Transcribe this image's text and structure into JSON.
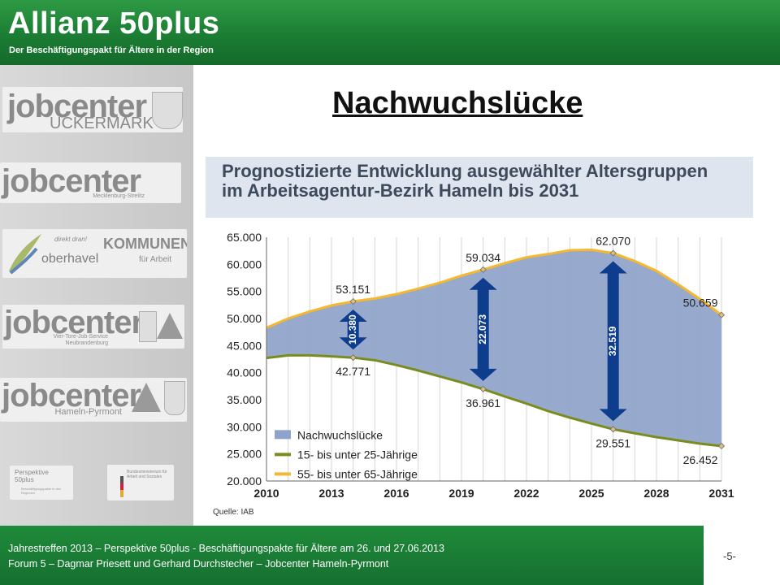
{
  "header": {
    "brand": "Allianz 50plus",
    "tagline": "Der Beschäftigungspakt für Ältere in der Region"
  },
  "sidebar": {
    "logos": [
      {
        "name": "jobcenter",
        "sub": "UCKERMARK"
      },
      {
        "name": "jobcenter",
        "sub": "Mecklenburg-Strelitz"
      },
      {
        "name": "oberhavel",
        "extra": "direkt dran!",
        "partner": "KOMMUNEN",
        "partner_sub": "für Arbeit"
      },
      {
        "name": "jobcenter",
        "sub": "Vier-Tore-Job-Service Neubrandenburg"
      },
      {
        "name": "jobcenter",
        "sub": "Hameln-Pyrmont"
      },
      {
        "name": "Perspektive 50plus",
        "sub": "Beschäftigungspakte in den Regionen",
        "partner": "Bundesministerium für Arbeit und Soziales"
      }
    ]
  },
  "main": {
    "title": "Nachwuchslücke",
    "chart_title_line1": "Prognostizierte Entwicklung ausgewählter Altersgruppen",
    "chart_title_line2": "im Arbeitsagentur-Bezirk Hameln bis 2031",
    "source": "Quelle: IAB"
  },
  "chart_data": {
    "type": "area",
    "title": "Prognostizierte Entwicklung ausgewählter Altersgruppen im Arbeitsagentur-Bezirk Hameln bis 2031",
    "x_ticks": [
      "2010",
      "2013",
      "2016",
      "2019",
      "2022",
      "2025",
      "2028",
      "2031"
    ],
    "y_ticks": [
      "20.000",
      "25.000",
      "30.000",
      "35.000",
      "40.000",
      "45.000",
      "50.000",
      "55.000",
      "60.000",
      "65.000"
    ],
    "ylim": [
      20000,
      65000
    ],
    "xlim": [
      2010,
      2031
    ],
    "series": [
      {
        "name": "15- bis unter 25-Jährige",
        "color": "#7a8c1f",
        "x": [
          2010,
          2011,
          2012,
          2013,
          2014,
          2015,
          2016,
          2017,
          2018,
          2019,
          2020,
          2021,
          2022,
          2023,
          2024,
          2025,
          2026,
          2027,
          2028,
          2029,
          2030,
          2031
        ],
        "y": [
          42700,
          43200,
          43200,
          43000,
          42771,
          42300,
          41400,
          40400,
          39300,
          38200,
          36961,
          35600,
          34300,
          32900,
          31700,
          30600,
          29551,
          28800,
          28100,
          27500,
          26900,
          26452
        ]
      },
      {
        "name": "55- bis unter 65-Jährige",
        "color": "#f5b82e",
        "x": [
          2010,
          2011,
          2012,
          2013,
          2014,
          2015,
          2016,
          2017,
          2018,
          2019,
          2020,
          2021,
          2022,
          2023,
          2024,
          2025,
          2026,
          2027,
          2028,
          2029,
          2030,
          2031
        ],
        "y": [
          48300,
          50000,
          51300,
          52400,
          53151,
          53700,
          54500,
          55500,
          56600,
          57900,
          59034,
          60200,
          61300,
          61900,
          62600,
          62700,
          62070,
          60600,
          58800,
          56300,
          53600,
          50659
        ]
      },
      {
        "name": "Nachwuchslücke",
        "color": "#8ea3c9"
      }
    ],
    "labels": [
      {
        "text": "53.151",
        "x": 2014,
        "y": 53151,
        "pos": "above"
      },
      {
        "text": "42.771",
        "x": 2014,
        "y": 42771,
        "pos": "below"
      },
      {
        "text": "59.034",
        "x": 2020,
        "y": 59034,
        "pos": "above"
      },
      {
        "text": "36.961",
        "x": 2020,
        "y": 36961,
        "pos": "below"
      },
      {
        "text": "62.070",
        "x": 2026,
        "y": 62070,
        "pos": "above"
      },
      {
        "text": "29.551",
        "x": 2026,
        "y": 29551,
        "pos": "below"
      },
      {
        "text": "50.659",
        "x": 2031,
        "y": 50659,
        "pos": "above"
      },
      {
        "text": "26.452",
        "x": 2031,
        "y": 26452,
        "pos": "below"
      }
    ],
    "gaps": [
      {
        "text": "10.380",
        "x": 2014,
        "y_low": 42771,
        "y_high": 53151
      },
      {
        "text": "22.073",
        "x": 2020,
        "y_low": 36961,
        "y_high": 59034
      },
      {
        "text": "32.519",
        "x": 2026,
        "y_low": 29551,
        "y_high": 62070
      }
    ],
    "legend": [
      "Nachwuchslücke",
      "15- bis unter 25-Jährige",
      "55- bis unter 65-Jährige"
    ],
    "legend_position": "bottom-left",
    "grid": "vertical"
  },
  "footer": {
    "line1": "Jahrestreffen 2013 – Perspektive 50plus -  Beschäftigungspakte für Ältere am 26. und 27.06.2013",
    "line2": "Forum 5 – Dagmar Priesett und Gerhard Durchstecher – Jobcenter Hameln-Pyrmont",
    "page": "-5-"
  }
}
